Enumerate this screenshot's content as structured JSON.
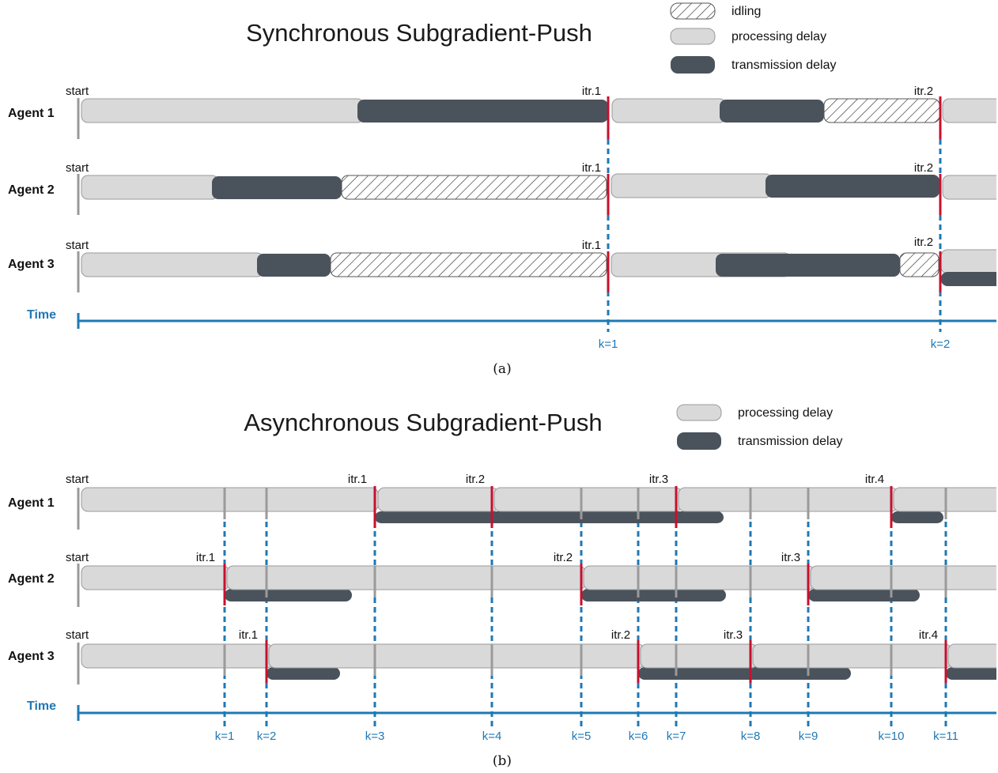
{
  "colors": {
    "processing": "#d9d9d9",
    "processing_stroke": "#9a9a9a",
    "transmission": "#4a535c",
    "idle_stroke": "#333333",
    "marker": "#c8102e",
    "time": "#1f78b4",
    "start_tick": "#9a9a9a",
    "minor_tick": "#9a9a9a"
  },
  "top": {
    "title": "Synchronous Subgradient-Push",
    "legend": {
      "idling": "idling",
      "processing": "processing delay",
      "transmission": "transmission delay"
    },
    "agents": [
      {
        "label": "Agent 1",
        "start_label": "start",
        "itr_labels": [
          "itr.1",
          "itr.2"
        ]
      },
      {
        "label": "Agent 2",
        "start_label": "start",
        "itr_labels": [
          "itr.1",
          "itr.2"
        ]
      },
      {
        "label": "Agent 3",
        "start_label": "start",
        "itr_labels": [
          "itr.1",
          "itr.2"
        ]
      }
    ],
    "time_label": "Time",
    "k_labels": [
      "k=1",
      "k=2"
    ],
    "caption": "(a)"
  },
  "bottom": {
    "title": "Asynchronous Subgradient-Push",
    "legend": {
      "processing": "processing delay",
      "transmission": "transmission delay"
    },
    "agents": [
      {
        "label": "Agent 1",
        "start_label": "start",
        "itr_labels": [
          "itr.1",
          "itr.2",
          "itr.3",
          "itr.4"
        ]
      },
      {
        "label": "Agent 2",
        "start_label": "start",
        "itr_labels": [
          "itr.1",
          "itr.2",
          "itr.3"
        ]
      },
      {
        "label": "Agent 3",
        "start_label": "start",
        "itr_labels": [
          "itr.1",
          "itr.2",
          "itr.3",
          "itr.4"
        ]
      }
    ],
    "time_label": "Time",
    "k_labels": [
      "k=1",
      "k=2",
      "k=3",
      "k=4",
      "k=5",
      "k=6",
      "k=7",
      "k=8",
      "k=9",
      "k=10",
      "k=11"
    ],
    "caption": "(b)"
  }
}
